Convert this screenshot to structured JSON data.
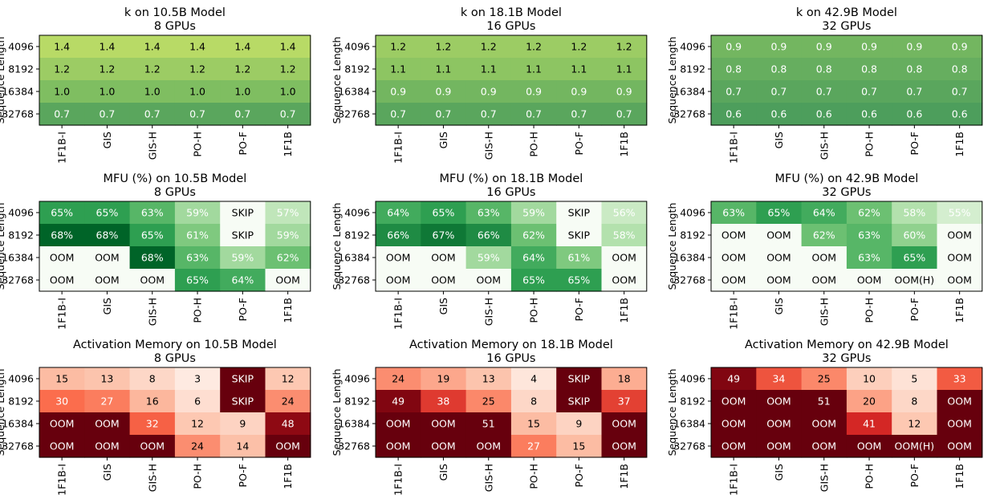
{
  "chart_data": [
    {
      "type": "heatmap",
      "metric": "k",
      "title": "k on 10.5B Model",
      "subtitle": "8 GPUs",
      "ylabel": "Sequence Length",
      "rows": [
        "4096",
        "8192",
        "16384",
        "32768"
      ],
      "columns": [
        "1F1B-I",
        "GIS",
        "GIS-H",
        "PO-H",
        "PO-F",
        "1F1B"
      ],
      "values": [
        [
          "1.4",
          "1.4",
          "1.4",
          "1.4",
          "1.4",
          "1.4"
        ],
        [
          "1.2",
          "1.2",
          "1.2",
          "1.2",
          "1.2",
          "1.2"
        ],
        [
          "1.0",
          "1.0",
          "1.0",
          "1.0",
          "1.0",
          "1.0"
        ],
        [
          "0.7",
          "0.7",
          "0.7",
          "0.7",
          "0.7",
          "0.7"
        ]
      ]
    },
    {
      "type": "heatmap",
      "metric": "k",
      "title": "k on 18.1B Model",
      "subtitle": "16 GPUs",
      "ylabel": "Sequence Length",
      "rows": [
        "4096",
        "8192",
        "16384",
        "32768"
      ],
      "columns": [
        "1F1B-I",
        "GIS",
        "GIS-H",
        "PO-H",
        "PO-F",
        "1F1B"
      ],
      "values": [
        [
          "1.2",
          "1.2",
          "1.2",
          "1.2",
          "1.2",
          "1.2"
        ],
        [
          "1.1",
          "1.1",
          "1.1",
          "1.1",
          "1.1",
          "1.1"
        ],
        [
          "0.9",
          "0.9",
          "0.9",
          "0.9",
          "0.9",
          "0.9"
        ],
        [
          "0.7",
          "0.7",
          "0.7",
          "0.7",
          "0.7",
          "0.7"
        ]
      ]
    },
    {
      "type": "heatmap",
      "metric": "k",
      "title": "k on 42.9B Model",
      "subtitle": "32 GPUs",
      "ylabel": "Sequence Length",
      "rows": [
        "4096",
        "8192",
        "16384",
        "32768"
      ],
      "columns": [
        "1F1B-I",
        "GIS",
        "GIS-H",
        "PO-H",
        "PO-F",
        "1F1B"
      ],
      "values": [
        [
          "0.9",
          "0.9",
          "0.9",
          "0.9",
          "0.9",
          "0.9"
        ],
        [
          "0.8",
          "0.8",
          "0.8",
          "0.8",
          "0.8",
          "0.8"
        ],
        [
          "0.7",
          "0.7",
          "0.7",
          "0.7",
          "0.7",
          "0.7"
        ],
        [
          "0.6",
          "0.6",
          "0.6",
          "0.6",
          "0.6",
          "0.6"
        ]
      ]
    },
    {
      "type": "heatmap",
      "metric": "mfu",
      "title": "MFU (%) on 10.5B Model",
      "subtitle": "8 GPUs",
      "ylabel": "Sequence Length",
      "rows": [
        "4096",
        "8192",
        "16384",
        "32768"
      ],
      "columns": [
        "1F1B-I",
        "GIS",
        "GIS-H",
        "PO-H",
        "PO-F",
        "1F1B"
      ],
      "values": [
        [
          "65%",
          "65%",
          "63%",
          "59%",
          "SKIP",
          "57%"
        ],
        [
          "68%",
          "68%",
          "65%",
          "61%",
          "SKIP",
          "59%"
        ],
        [
          "OOM",
          "OOM",
          "68%",
          "63%",
          "59%",
          "62%"
        ],
        [
          "OOM",
          "OOM",
          "OOM",
          "65%",
          "64%",
          "OOM"
        ]
      ]
    },
    {
      "type": "heatmap",
      "metric": "mfu",
      "title": "MFU (%) on 18.1B Model",
      "subtitle": "16 GPUs",
      "ylabel": "Sequence Length",
      "rows": [
        "4096",
        "8192",
        "16384",
        "32768"
      ],
      "columns": [
        "1F1B-I",
        "GIS",
        "GIS-H",
        "PO-H",
        "PO-F",
        "1F1B"
      ],
      "values": [
        [
          "64%",
          "65%",
          "63%",
          "59%",
          "SKIP",
          "56%"
        ],
        [
          "66%",
          "67%",
          "66%",
          "62%",
          "SKIP",
          "58%"
        ],
        [
          "OOM",
          "OOM",
          "59%",
          "64%",
          "61%",
          "OOM"
        ],
        [
          "OOM",
          "OOM",
          "OOM",
          "65%",
          "65%",
          "OOM"
        ]
      ]
    },
    {
      "type": "heatmap",
      "metric": "mfu",
      "title": "MFU (%) on 42.9B Model",
      "subtitle": "32 GPUs",
      "ylabel": "Sequence Length",
      "rows": [
        "4096",
        "8192",
        "16384",
        "32768"
      ],
      "columns": [
        "1F1B-I",
        "GIS",
        "GIS-H",
        "PO-H",
        "PO-F",
        "1F1B"
      ],
      "values": [
        [
          "63%",
          "65%",
          "64%",
          "62%",
          "58%",
          "55%"
        ],
        [
          "OOM",
          "OOM",
          "62%",
          "63%",
          "60%",
          "OOM"
        ],
        [
          "OOM",
          "OOM",
          "OOM",
          "63%",
          "65%",
          "OOM"
        ],
        [
          "OOM",
          "OOM",
          "OOM",
          "OOM",
          "OOM(H)",
          "OOM"
        ]
      ]
    },
    {
      "type": "heatmap",
      "metric": "mem",
      "title": "Activation Memory on 10.5B Model",
      "subtitle": "8 GPUs",
      "ylabel": "Sequence Length",
      "rows": [
        "4096",
        "8192",
        "16384",
        "32768"
      ],
      "columns": [
        "1F1B-I",
        "GIS",
        "GIS-H",
        "PO-H",
        "PO-F",
        "1F1B"
      ],
      "values": [
        [
          "15",
          "13",
          "8",
          "3",
          "SKIP",
          "12"
        ],
        [
          "30",
          "27",
          "16",
          "6",
          "SKIP",
          "24"
        ],
        [
          "OOM",
          "OOM",
          "32",
          "12",
          "9",
          "48"
        ],
        [
          "OOM",
          "OOM",
          "OOM",
          "24",
          "14",
          "OOM"
        ]
      ]
    },
    {
      "type": "heatmap",
      "metric": "mem",
      "title": "Activation Memory on 18.1B Model",
      "subtitle": "16 GPUs",
      "ylabel": "Sequence Length",
      "rows": [
        "4096",
        "8192",
        "16384",
        "32768"
      ],
      "columns": [
        "1F1B-I",
        "GIS",
        "GIS-H",
        "PO-H",
        "PO-F",
        "1F1B"
      ],
      "values": [
        [
          "24",
          "19",
          "13",
          "4",
          "SKIP",
          "18"
        ],
        [
          "49",
          "38",
          "25",
          "8",
          "SKIP",
          "37"
        ],
        [
          "OOM",
          "OOM",
          "51",
          "15",
          "9",
          "OOM"
        ],
        [
          "OOM",
          "OOM",
          "OOM",
          "27",
          "15",
          "OOM"
        ]
      ]
    },
    {
      "type": "heatmap",
      "metric": "mem",
      "title": "Activation Memory on 42.9B Model",
      "subtitle": "32 GPUs",
      "ylabel": "Sequence Length",
      "rows": [
        "4096",
        "8192",
        "16384",
        "32768"
      ],
      "columns": [
        "1F1B-I",
        "GIS",
        "GIS-H",
        "PO-H",
        "PO-F",
        "1F1B"
      ],
      "values": [
        [
          "49",
          "34",
          "25",
          "10",
          "5",
          "33"
        ],
        [
          "OOM",
          "OOM",
          "51",
          "20",
          "8",
          "OOM"
        ],
        [
          "OOM",
          "OOM",
          "OOM",
          "41",
          "12",
          "OOM"
        ],
        [
          "OOM",
          "OOM",
          "OOM",
          "OOM",
          "OOM(H)",
          "OOM"
        ]
      ]
    }
  ]
}
